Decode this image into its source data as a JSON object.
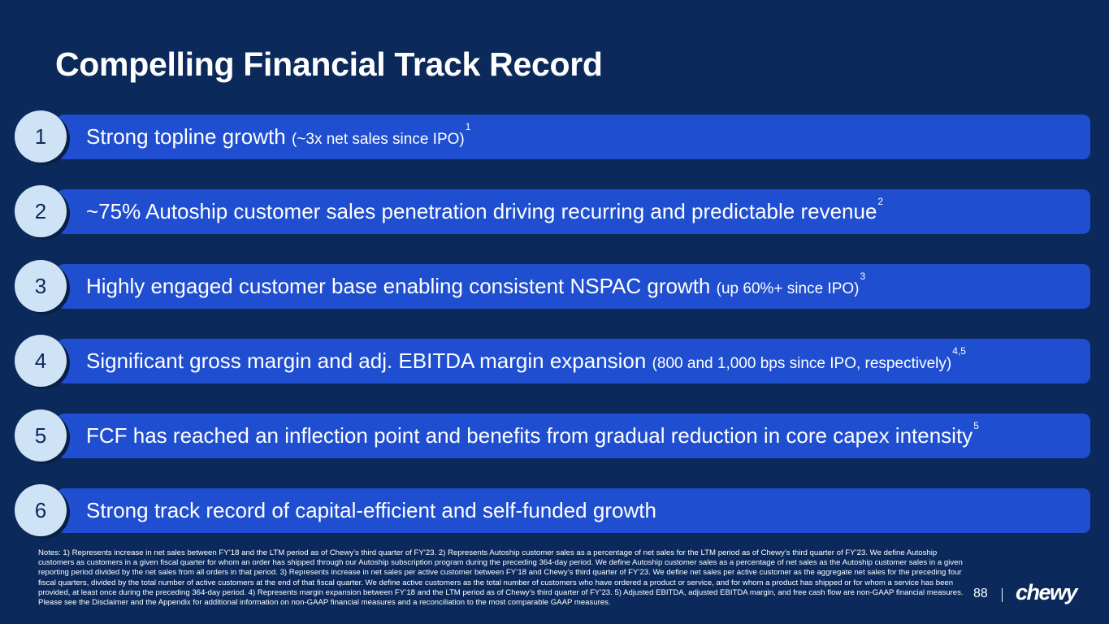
{
  "header": {
    "title": "Compelling Financial Track Record"
  },
  "items": [
    {
      "number": "1",
      "main": "Strong topline growth",
      "detail": "(~3x net sales since IPO)",
      "note": "1"
    },
    {
      "number": "2",
      "main": "~75% Autoship customer sales penetration driving recurring and predictable revenue",
      "note": "2"
    },
    {
      "number": "3",
      "main": "Highly engaged customer base enabling consistent NSPAC growth",
      "detail": "(up 60%+ since IPO)",
      "note": "3"
    },
    {
      "number": "4",
      "main": "Significant gross margin and adj. EBITDA margin expansion",
      "detail": "(800 and 1,000 bps since IPO, respectively)",
      "note": "4,5"
    },
    {
      "number": "5",
      "main": "FCF has reached an inflection point and benefits from gradual reduction in core capex intensity",
      "note": "5"
    },
    {
      "number": "6",
      "main": "Strong track record of capital-efficient and self-funded growth"
    }
  ],
  "footer": {
    "notes": "Notes: 1) Represents increase in net sales between FY’18 and the LTM period as of Chewy’s third quarter of FY’23. 2) Represents Autoship customer sales as a percentage of net sales for the LTM period as of Chewy’s third quarter of FY’23. We define Autoship customers as customers in a given fiscal quarter for whom an order has shipped through our Autoship subscription program during the preceding 364-day period. We define Autoship customer sales as a percentage of net sales as the Autoship customer sales in a given reporting period divided by the net sales from all orders in that period. 3) Represents increase in net sales per active customer between FY’18 and Chewy’s third quarter of FY’23. We define net sales per active customer as the aggregate net sales for the preceding four fiscal quarters, divided by the total number of active customers at the end of that fiscal quarter. We define active customers as the total number of customers who have ordered a product or service, and for whom a product has shipped or for whom a service has been provided, at least once during the preceding 364-day period. 4) Represents margin expansion between FY’18 and the LTM period as of Chewy’s third quarter of FY’23. 5) Adjusted EBITDA, adjusted EBITDA margin, and free cash flow are non-GAAP financial measures. Please see the Disclaimer and the Appendix for additional information on non-GAAP financial measures and a reconciliation to the most comparable GAAP measures.",
    "page": "88",
    "logo": "chewy"
  }
}
